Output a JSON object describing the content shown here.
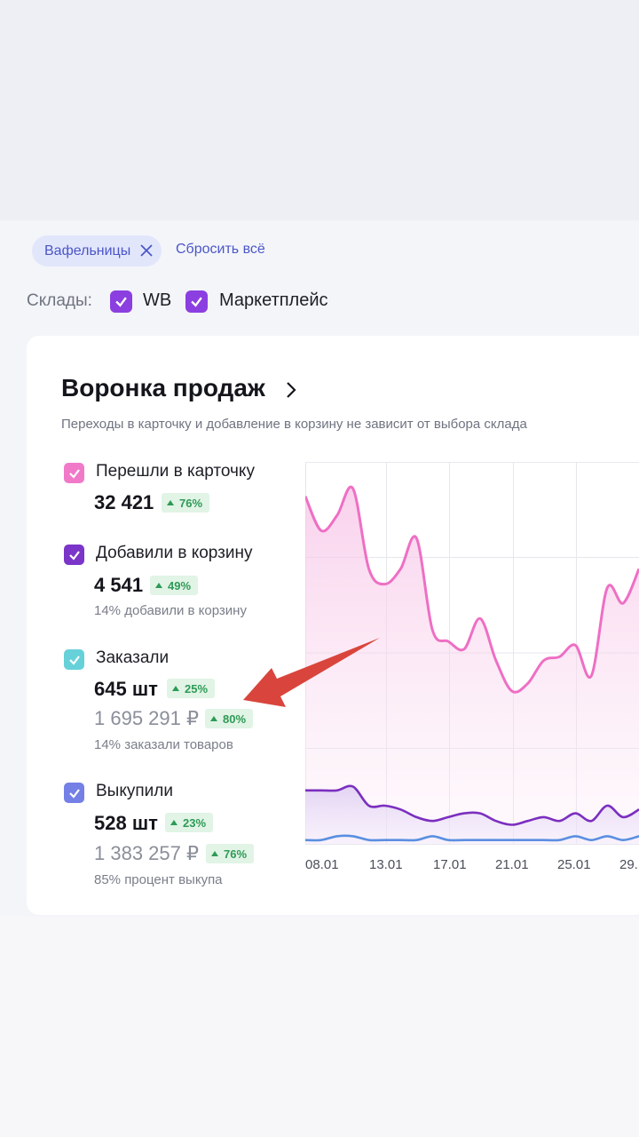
{
  "filters": {
    "chip_label": "Вафельницы",
    "reset_label": "Сбросить всё"
  },
  "warehouses": {
    "label": "Склады:",
    "options": [
      {
        "label": "WB",
        "checked": true
      },
      {
        "label": "Маркетплейс",
        "checked": true
      }
    ]
  },
  "funnel": {
    "title": "Воронка продаж",
    "subtitle": "Переходы в карточку и добавление в корзину не зависит от выбора склада",
    "metrics": [
      {
        "label": "Перешли в карточку",
        "color": "#f07ac8",
        "value": "32 421",
        "change": "76%"
      },
      {
        "label": "Добавили в корзину",
        "color": "#7b35c8",
        "value": "4 541",
        "change": "49%",
        "note": "14% добавили в корзину"
      },
      {
        "label": "Заказали",
        "color": "#66d1d9",
        "value": "645 шт",
        "change": "25%",
        "value2": "1 695 291 ₽",
        "change2": "80%",
        "note": "14% заказали товаров"
      },
      {
        "label": "Выкупили",
        "color": "#7480e6",
        "value": "528 шт",
        "change": "23%",
        "value2": "1 383 257 ₽",
        "change2": "76%",
        "note": "85% процент выкупа"
      }
    ]
  },
  "chart_data": {
    "type": "line",
    "x_ticks": [
      "08.01",
      "13.01",
      "17.01",
      "21.01",
      "25.01",
      "29."
    ],
    "series": [
      {
        "color": "#ee6fc4",
        "values": [
          0.91,
          0.82,
          0.86,
          0.93,
          0.72,
          0.68,
          0.72,
          0.8,
          0.56,
          0.53,
          0.51,
          0.59,
          0.48,
          0.4,
          0.42,
          0.48,
          0.49,
          0.52,
          0.44,
          0.67,
          0.63,
          0.72
        ]
      },
      {
        "color": "#7b2fbf",
        "values": [
          0.14,
          0.14,
          0.14,
          0.15,
          0.1,
          0.1,
          0.09,
          0.07,
          0.06,
          0.07,
          0.08,
          0.08,
          0.06,
          0.05,
          0.06,
          0.07,
          0.06,
          0.08,
          0.06,
          0.1,
          0.07,
          0.09
        ]
      },
      {
        "color": "#5a8fe0",
        "values": [
          0.01,
          0.01,
          0.02,
          0.02,
          0.01,
          0.01,
          0.01,
          0.01,
          0.02,
          0.01,
          0.01,
          0.01,
          0.01,
          0.01,
          0.01,
          0.01,
          0.01,
          0.02,
          0.01,
          0.02,
          0.01,
          0.02
        ]
      }
    ]
  }
}
